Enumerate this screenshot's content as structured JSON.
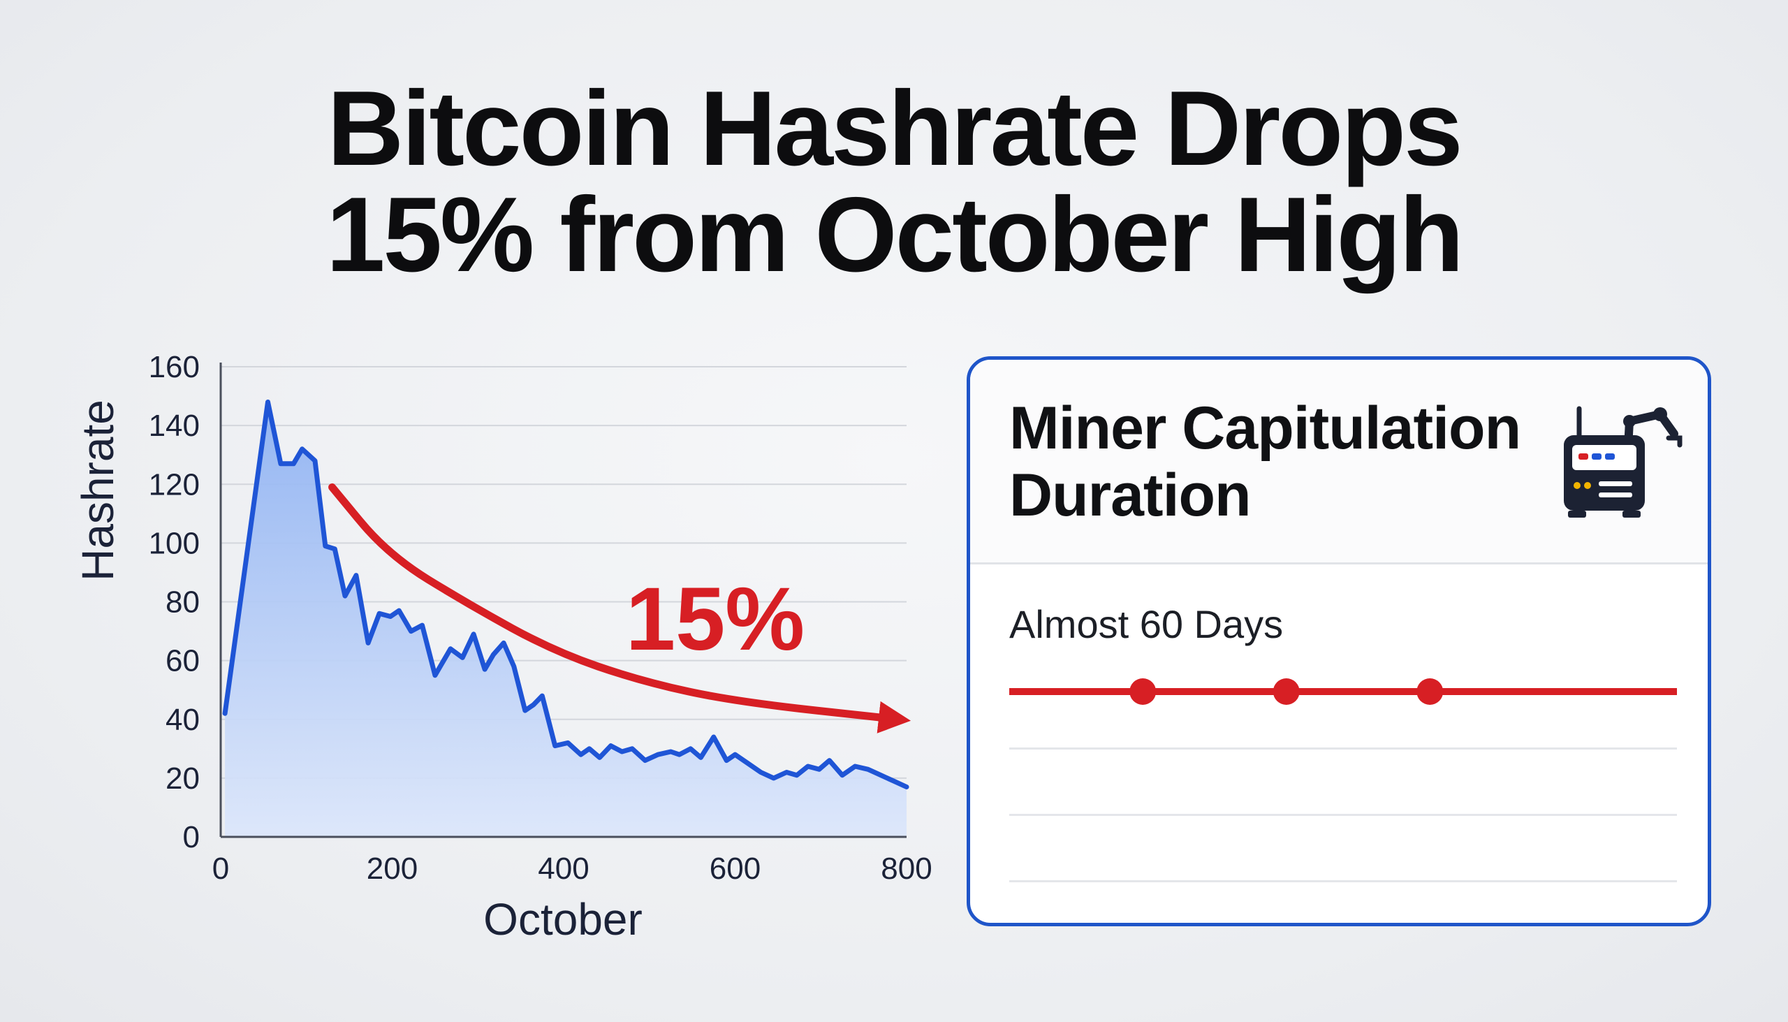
{
  "headline": {
    "line1": "Bitcoin Hashrate Drops",
    "line2": "15% from October High"
  },
  "chart_data": {
    "type": "area",
    "xlabel": "October",
    "ylabel": "Hashrate",
    "xlim": [
      0,
      800
    ],
    "ylim": [
      0,
      160
    ],
    "x_ticks": [
      "0",
      "200",
      "400",
      "600",
      "800"
    ],
    "y_ticks": [
      "0",
      "20",
      "40",
      "60",
      "80",
      "100",
      "120",
      "140",
      "160"
    ],
    "grid": true,
    "series": [
      {
        "color": "#1f55d6",
        "fill": "#a9c4f5",
        "points": [
          [
            5,
            42
          ],
          [
            55,
            148
          ],
          [
            70,
            127
          ],
          [
            85,
            127
          ],
          [
            95,
            132
          ],
          [
            110,
            128
          ],
          [
            122,
            99
          ],
          [
            133,
            98
          ],
          [
            145,
            82
          ],
          [
            158,
            89
          ],
          [
            172,
            66
          ],
          [
            185,
            76
          ],
          [
            198,
            75
          ],
          [
            208,
            77
          ],
          [
            222,
            70
          ],
          [
            235,
            72
          ],
          [
            250,
            55
          ],
          [
            268,
            64
          ],
          [
            282,
            61
          ],
          [
            295,
            69
          ],
          [
            308,
            57
          ],
          [
            318,
            62
          ],
          [
            330,
            66
          ],
          [
            342,
            58
          ],
          [
            355,
            43
          ],
          [
            365,
            45
          ],
          [
            375,
            48
          ],
          [
            390,
            31
          ],
          [
            405,
            32
          ],
          [
            420,
            28
          ],
          [
            430,
            30
          ],
          [
            442,
            27
          ],
          [
            455,
            31
          ],
          [
            468,
            29
          ],
          [
            480,
            30
          ],
          [
            495,
            26
          ],
          [
            510,
            28
          ],
          [
            525,
            29
          ],
          [
            535,
            28
          ],
          [
            548,
            30
          ],
          [
            560,
            27
          ],
          [
            575,
            34
          ],
          [
            590,
            26
          ],
          [
            600,
            28
          ],
          [
            615,
            25
          ],
          [
            630,
            22
          ],
          [
            645,
            20
          ],
          [
            660,
            22
          ],
          [
            672,
            21
          ],
          [
            685,
            24
          ],
          [
            698,
            23
          ],
          [
            710,
            26
          ],
          [
            725,
            21
          ],
          [
            740,
            24
          ],
          [
            755,
            23
          ],
          [
            770,
            21
          ],
          [
            785,
            19
          ],
          [
            800,
            17
          ]
        ]
      }
    ],
    "annotation": {
      "label": "15%",
      "color": "#d71f24",
      "points": [
        [
          130,
          119
        ],
        [
          195,
          96
        ],
        [
          290,
          79
        ],
        [
          390,
          63
        ],
        [
          490,
          53
        ],
        [
          600,
          46
        ],
        [
          790,
          40
        ]
      ]
    }
  },
  "card": {
    "title_line1": "Miner Capitulation",
    "title_line2": "Duration",
    "icon": "mining-rig-icon",
    "value": "Almost 60 Days",
    "accent": "#d71f24",
    "border_color": "#1f55c9",
    "markers": [
      0.2,
      0.415,
      0.63
    ]
  }
}
